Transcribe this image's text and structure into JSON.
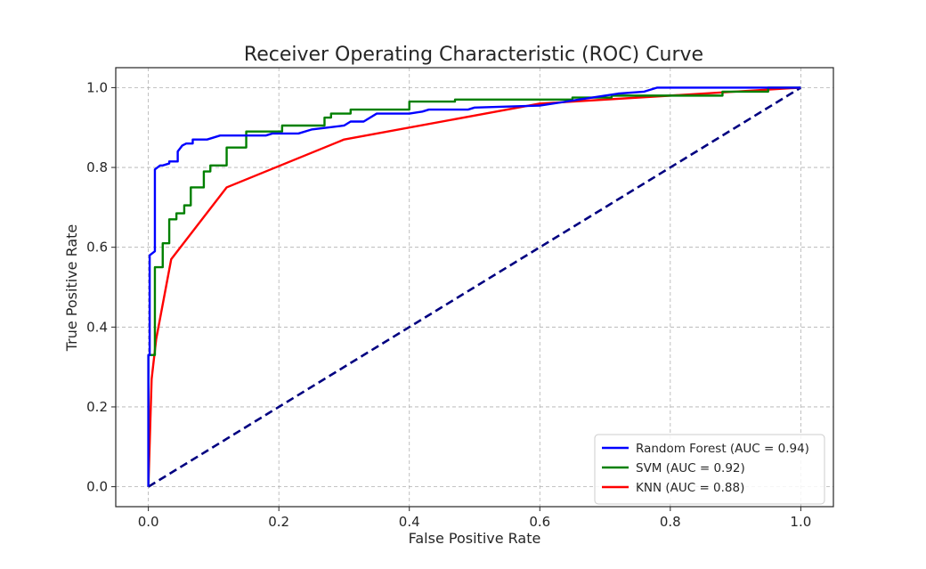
{
  "chart_data": {
    "type": "line",
    "title": "Receiver Operating Characteristic (ROC) Curve",
    "xlabel": "False Positive Rate",
    "ylabel": "True Positive Rate",
    "xlim": [
      -0.05,
      1.05
    ],
    "ylim": [
      -0.05,
      1.05
    ],
    "xticks": [
      "0.0",
      "0.2",
      "0.4",
      "0.6",
      "0.8",
      "1.0"
    ],
    "yticks": [
      "0.0",
      "0.2",
      "0.4",
      "0.6",
      "0.8",
      "1.0"
    ],
    "grid": true,
    "legend_position": "lower-right",
    "series": [
      {
        "name": "Random Forest (AUC = 0.94)",
        "color": "#0000ff",
        "x": [
          0,
          0,
          0.002,
          0.002,
          0.01,
          0.01,
          0.018,
          0.022,
          0.032,
          0.032,
          0.045,
          0.045,
          0.052,
          0.058,
          0.068,
          0.068,
          0.09,
          0.1,
          0.11,
          0.12,
          0.18,
          0.19,
          0.2,
          0.23,
          0.25,
          0.3,
          0.31,
          0.33,
          0.35,
          0.4,
          0.42,
          0.43,
          0.49,
          0.5,
          0.6,
          0.66,
          0.72,
          0.76,
          0.78,
          0.88,
          1.0
        ],
        "y": [
          0,
          0.33,
          0.33,
          0.58,
          0.59,
          0.795,
          0.805,
          0.805,
          0.81,
          0.815,
          0.815,
          0.84,
          0.855,
          0.86,
          0.86,
          0.87,
          0.87,
          0.875,
          0.88,
          0.88,
          0.88,
          0.885,
          0.885,
          0.885,
          0.895,
          0.905,
          0.915,
          0.915,
          0.935,
          0.935,
          0.94,
          0.945,
          0.945,
          0.95,
          0.955,
          0.97,
          0.985,
          0.99,
          1.0,
          1.0,
          1.0
        ]
      },
      {
        "name": "SVM (AUC = 0.92)",
        "color": "#008000",
        "x": [
          0,
          0,
          0.01,
          0.01,
          0.018,
          0.022,
          0.022,
          0.032,
          0.032,
          0.043,
          0.043,
          0.055,
          0.055,
          0.065,
          0.065,
          0.085,
          0.085,
          0.095,
          0.095,
          0.12,
          0.12,
          0.15,
          0.15,
          0.205,
          0.205,
          0.27,
          0.27,
          0.28,
          0.28,
          0.31,
          0.31,
          0.4,
          0.4,
          0.47,
          0.47,
          0.65,
          0.65,
          0.71,
          0.71,
          0.88,
          0.88,
          0.95,
          0.95,
          1.0
        ],
        "y": [
          0,
          0.33,
          0.33,
          0.55,
          0.55,
          0.55,
          0.61,
          0.61,
          0.67,
          0.67,
          0.685,
          0.685,
          0.705,
          0.705,
          0.75,
          0.75,
          0.79,
          0.79,
          0.805,
          0.805,
          0.85,
          0.85,
          0.89,
          0.89,
          0.905,
          0.905,
          0.925,
          0.925,
          0.935,
          0.935,
          0.945,
          0.945,
          0.965,
          0.965,
          0.97,
          0.97,
          0.975,
          0.975,
          0.98,
          0.98,
          0.99,
          0.99,
          1.0,
          1.0
        ]
      },
      {
        "name": "KNN (AUC = 0.88)",
        "color": "#ff0000",
        "x": [
          0,
          0.005,
          0.012,
          0.035,
          0.12,
          0.3,
          0.6,
          0.8,
          1.0
        ],
        "y": [
          0,
          0.27,
          0.37,
          0.57,
          0.75,
          0.87,
          0.96,
          0.98,
          1.0
        ]
      },
      {
        "name": "",
        "color": "#000080",
        "dashed": true,
        "x": [
          0,
          1
        ],
        "y": [
          0,
          1
        ]
      }
    ]
  }
}
